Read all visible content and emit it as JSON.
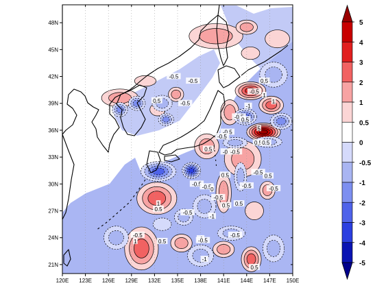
{
  "map": {
    "lon_ticks": [
      "120E",
      "123E",
      "126E",
      "129E",
      "132E",
      "135E",
      "138E",
      "141E",
      "144E",
      "147E",
      "150E"
    ],
    "lat_ticks": [
      "21N",
      "24N",
      "27N",
      "30N",
      "33N",
      "36N",
      "39N",
      "42N",
      "45N",
      "48N"
    ],
    "lon_range": [
      120,
      150
    ],
    "lat_range": [
      20,
      50
    ],
    "contour_labels": [
      {
        "text": "-0.5",
        "lon": 134.5,
        "lat": 42.0
      },
      {
        "text": "0.5",
        "lon": 132.3,
        "lat": 39.3
      },
      {
        "text": "-0.5",
        "lon": 136.0,
        "lat": 39.0
      },
      {
        "text": "-0.5",
        "lon": 137.0,
        "lat": 41.5
      },
      {
        "text": "-0.5",
        "lon": 145.0,
        "lat": 40.3
      },
      {
        "text": "0.5",
        "lon": 146.3,
        "lat": 41.5
      },
      {
        "text": "-1",
        "lon": 144.2,
        "lat": 38.7
      },
      {
        "text": "-0.5",
        "lon": 143.0,
        "lat": 37.5
      },
      {
        "text": "0.5",
        "lon": 143.8,
        "lat": 37.2
      },
      {
        "text": "1",
        "lon": 146.3,
        "lat": 39.9
      },
      {
        "text": "1",
        "lon": 147.5,
        "lat": 39.2
      },
      {
        "text": "5",
        "lon": 145.6,
        "lat": 36.2
      },
      {
        "text": "-0.5",
        "lon": 141.5,
        "lat": 35.8
      },
      {
        "text": "-0.5",
        "lon": 140.8,
        "lat": 35.3
      },
      {
        "text": "0.5",
        "lon": 145.5,
        "lat": 34.6
      },
      {
        "text": "0.5",
        "lon": 146.5,
        "lat": 34.6
      },
      {
        "text": "-0.5",
        "lon": 141.5,
        "lat": 33.6
      },
      {
        "text": "-0.5",
        "lon": 142.5,
        "lat": 33.6
      },
      {
        "text": "0.5",
        "lon": 139.0,
        "lat": 33.9
      },
      {
        "text": "0.5",
        "lon": 141.2,
        "lat": 31.0
      },
      {
        "text": "-0.5",
        "lon": 145.5,
        "lat": 31.3
      },
      {
        "text": "0.5",
        "lon": 146.8,
        "lat": 30.9
      },
      {
        "text": "-0.5",
        "lon": 137.5,
        "lat": 30.0
      },
      {
        "text": "-0.5",
        "lon": 138.8,
        "lat": 29.7
      },
      {
        "text": "-0.5",
        "lon": 144.0,
        "lat": 29.8
      },
      {
        "text": "-0.5",
        "lon": 147.5,
        "lat": 29.5
      },
      {
        "text": "0",
        "lon": 139.5,
        "lat": 29.4
      },
      {
        "text": "-0.5",
        "lon": 140.3,
        "lat": 28.5
      },
      {
        "text": "0.5",
        "lon": 141.3,
        "lat": 27.6
      },
      {
        "text": "0.5",
        "lon": 143.0,
        "lat": 27.8
      },
      {
        "text": "1",
        "lon": 132.5,
        "lat": 27.8
      },
      {
        "text": "-0.5",
        "lon": 136.3,
        "lat": 26.8
      },
      {
        "text": "0.5",
        "lon": 132.5,
        "lat": 27.2
      },
      {
        "text": "-1",
        "lon": 139.5,
        "lat": 26.4
      },
      {
        "text": "-1",
        "lon": 138.0,
        "lat": 23.9
      },
      {
        "text": "-0.5",
        "lon": 129.8,
        "lat": 24.3
      },
      {
        "text": "-0.5",
        "lon": 138.3,
        "lat": 23.7
      },
      {
        "text": "-0.5",
        "lon": 142.5,
        "lat": 24.3
      },
      {
        "text": "0.5",
        "lon": 133.0,
        "lat": 23.6
      },
      {
        "text": "1",
        "lon": 129.5,
        "lat": 23.6
      },
      {
        "text": "-1",
        "lon": 138.5,
        "lat": 21.6
      },
      {
        "text": "0.5",
        "lon": 145.0,
        "lat": 20.7
      }
    ],
    "anomaly_fields": [
      {
        "lon": 144.5,
        "lat": 40.4,
        "rx": 2.0,
        "ry": 1.0,
        "value": 3
      },
      {
        "lon": 147.2,
        "lat": 38.8,
        "rx": 1.6,
        "ry": 1.0,
        "value": 2
      },
      {
        "lon": 146.2,
        "lat": 35.8,
        "rx": 2.2,
        "ry": 1.0,
        "value": 5
      },
      {
        "lon": 141.8,
        "lat": 38.0,
        "rx": 1.2,
        "ry": 1.4,
        "value": 1
      },
      {
        "lon": 143.5,
        "lat": 32.8,
        "rx": 2.4,
        "ry": 2.0,
        "value": 1
      },
      {
        "lon": 141.0,
        "lat": 29.0,
        "rx": 1.0,
        "ry": 2.2,
        "value": 1
      },
      {
        "lon": 138.8,
        "lat": 34.2,
        "rx": 1.6,
        "ry": 1.4,
        "value": 1
      },
      {
        "lon": 132.3,
        "lat": 28.4,
        "rx": 2.6,
        "ry": 1.8,
        "value": 2
      },
      {
        "lon": 145.0,
        "lat": 27.0,
        "rx": 1.2,
        "ry": 1.0,
        "value": 0.5
      },
      {
        "lon": 146.7,
        "lat": 29.3,
        "rx": 1.0,
        "ry": 1.0,
        "value": 1
      },
      {
        "lon": 130.3,
        "lat": 22.8,
        "rx": 2.2,
        "ry": 2.4,
        "value": 2
      },
      {
        "lon": 135.5,
        "lat": 23.4,
        "rx": 1.4,
        "ry": 1.0,
        "value": 1
      },
      {
        "lon": 141.0,
        "lat": 22.7,
        "rx": 1.4,
        "ry": 0.9,
        "value": 1
      },
      {
        "lon": 144.6,
        "lat": 21.6,
        "rx": 1.3,
        "ry": 1.4,
        "value": 2
      },
      {
        "lon": 127.5,
        "lat": 39.6,
        "rx": 2.4,
        "ry": 1.0,
        "value": 1
      },
      {
        "lon": 130.8,
        "lat": 41.5,
        "rx": 1.4,
        "ry": 0.6,
        "value": 0.5
      },
      {
        "lon": 132.4,
        "lat": 38.3,
        "rx": 1.0,
        "ry": 0.7,
        "value": 0.5
      },
      {
        "lon": 134.8,
        "lat": 40.0,
        "rx": 1.0,
        "ry": 0.8,
        "value": 1
      },
      {
        "lon": 140.0,
        "lat": 46.5,
        "rx": 3.5,
        "ry": 1.4,
        "value": 1
      },
      {
        "lon": 144.0,
        "lat": 47.5,
        "rx": 1.4,
        "ry": 0.8,
        "value": 1
      },
      {
        "lon": 144.5,
        "lat": 44.6,
        "rx": 1.2,
        "ry": 0.7,
        "value": 0.5
      },
      {
        "lon": 148.0,
        "lat": 46.2,
        "rx": 1.6,
        "ry": 1.0,
        "value": 0.5
      },
      {
        "lon": 136.8,
        "lat": 31.5,
        "rx": 1.2,
        "ry": 0.9,
        "value": -4
      },
      {
        "lon": 132.5,
        "lat": 31.4,
        "rx": 2.3,
        "ry": 1.1,
        "value": -3
      },
      {
        "lon": 127.5,
        "lat": 38.3,
        "rx": 1.0,
        "ry": 0.8,
        "value": -2
      },
      {
        "lon": 129.7,
        "lat": 39.0,
        "rx": 1.1,
        "ry": 0.8,
        "value": -2
      },
      {
        "lon": 133.0,
        "lat": 39.0,
        "rx": 1.3,
        "ry": 0.9,
        "value": -1
      },
      {
        "lon": 133.5,
        "lat": 37.2,
        "rx": 1.0,
        "ry": 0.7,
        "value": -2
      },
      {
        "lon": 143.8,
        "lat": 37.5,
        "rx": 1.5,
        "ry": 0.9,
        "value": -3
      },
      {
        "lon": 148.5,
        "lat": 37.0,
        "rx": 1.4,
        "ry": 0.9,
        "value": -2
      },
      {
        "lon": 146.8,
        "lat": 34.7,
        "rx": 1.8,
        "ry": 0.6,
        "value": -1
      },
      {
        "lon": 142.5,
        "lat": 34.6,
        "rx": 1.6,
        "ry": 0.6,
        "value": -1
      },
      {
        "lon": 138.5,
        "lat": 27.5,
        "rx": 1.5,
        "ry": 1.3,
        "value": -1
      },
      {
        "lon": 135.8,
        "lat": 26.3,
        "rx": 1.2,
        "ry": 0.9,
        "value": -1
      },
      {
        "lon": 127.0,
        "lat": 24.0,
        "rx": 1.6,
        "ry": 1.3,
        "value": -1
      },
      {
        "lon": 133.0,
        "lat": 25.5,
        "rx": 1.2,
        "ry": 0.7,
        "value": -0.5
      },
      {
        "lon": 138.0,
        "lat": 22.0,
        "rx": 1.7,
        "ry": 1.2,
        "value": -1
      },
      {
        "lon": 142.0,
        "lat": 24.5,
        "rx": 1.8,
        "ry": 0.8,
        "value": -1
      },
      {
        "lon": 147.5,
        "lat": 22.8,
        "rx": 1.4,
        "ry": 1.5,
        "value": -1
      },
      {
        "lon": 143.2,
        "lat": 30.8,
        "rx": 0.8,
        "ry": 1.6,
        "value": -1
      },
      {
        "lon": 147.5,
        "lat": 42.2,
        "rx": 1.8,
        "ry": 1.4,
        "value": -1
      }
    ],
    "colors": {
      "neg_fill": "#a9b5f2",
      "pos_fill": "#f7a6a6",
      "ocean_fill": "#ffffff",
      "land_fill": "#ffffff"
    }
  },
  "colorbar": {
    "tick_labels": [
      "5",
      "4",
      "3",
      "2",
      "1",
      "0.5",
      "0",
      "-0.5",
      "-1",
      "-2",
      "-3",
      "-4",
      "-5"
    ],
    "level_colors": [
      "#9a0000",
      "#c80000",
      "#e11f1f",
      "#f16262",
      "#f7a3a3",
      "#fbd5d5",
      "#ffffff",
      "#d5dafb",
      "#a9b5f2",
      "#7d8ff0",
      "#4f63ea",
      "#2b3fe0",
      "#0a14b3",
      "#00008c"
    ],
    "max_color": "#9a0000",
    "min_color": "#00008c"
  }
}
